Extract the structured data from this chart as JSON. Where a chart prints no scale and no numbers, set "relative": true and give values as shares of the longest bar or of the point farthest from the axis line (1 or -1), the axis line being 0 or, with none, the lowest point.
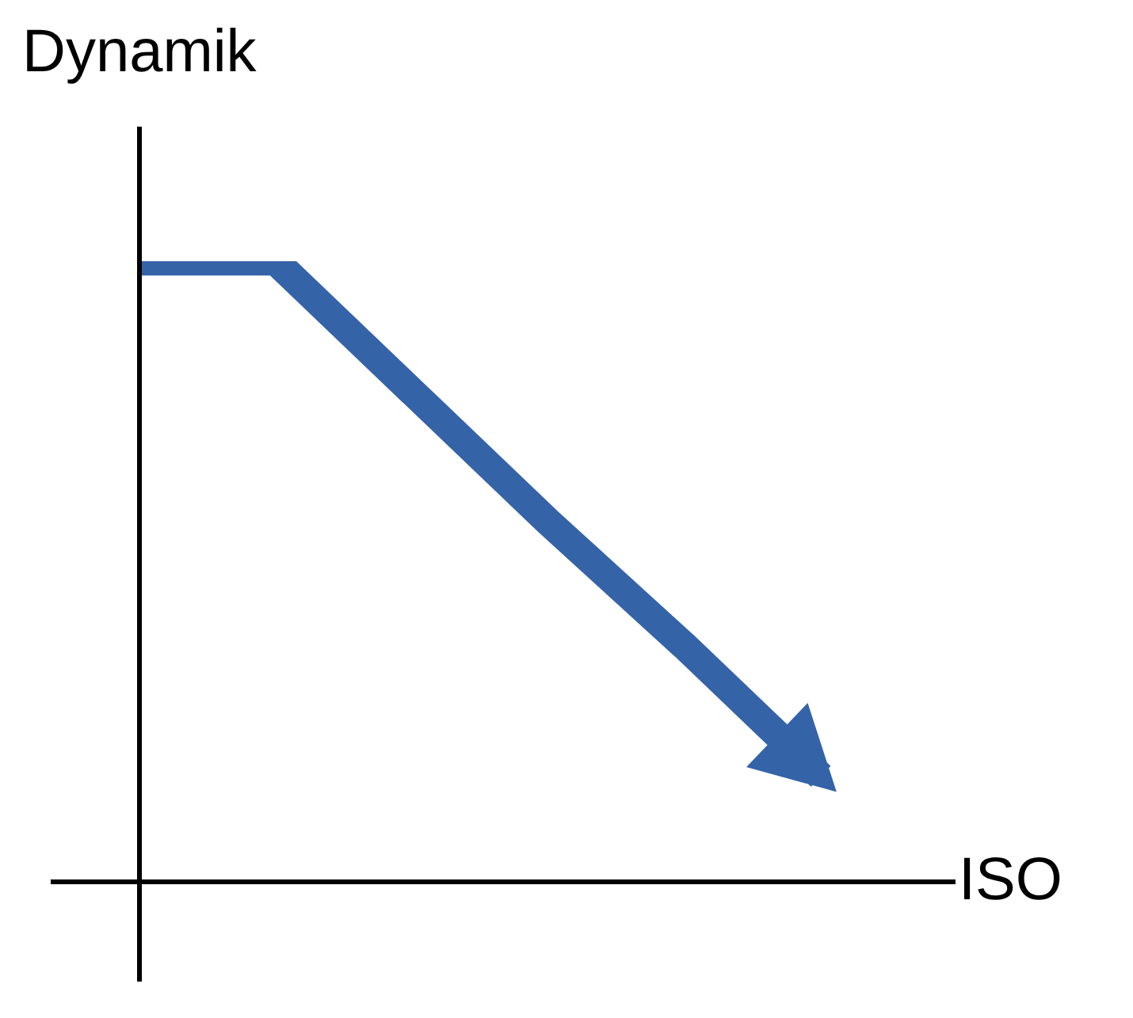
{
  "chart_data": {
    "type": "line",
    "xlabel": "ISO",
    "ylabel": "Dynamik",
    "relative": true,
    "categories": [
      null,
      null,
      null,
      null,
      null,
      null
    ],
    "series": [
      {
        "color": "#3563a8",
        "values": [
          1,
          1,
          0.79,
          0.58,
          0.38,
          0.17
        ]
      }
    ]
  }
}
